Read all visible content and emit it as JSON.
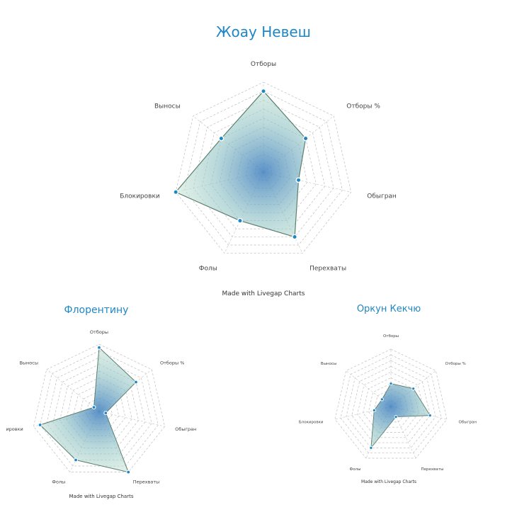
{
  "axes": [
    "Отборы",
    "Отборы %",
    "Обыгран",
    "Перехваты",
    "Фолы",
    "Блокировки",
    "Выносы"
  ],
  "colors": {
    "title": "#1f86c6",
    "point": "#1c86c8",
    "outline": "#5a8070",
    "fill_outer": "#cfe8d6",
    "fill_inner": "#3f7fbf"
  },
  "chart_data": [
    {
      "type": "radar",
      "title": "Жоау Невеш",
      "categories": [
        "Отборы",
        "Отборы %",
        "Обыгран",
        "Перехваты",
        "Фолы",
        "Блокировки",
        "Выносы"
      ],
      "series": [
        {
          "values": [
            9,
            6,
            4,
            8,
            6,
            10,
            6
          ]
        }
      ],
      "rlim": [
        0,
        10
      ],
      "grid": true,
      "footer": "Made with Livegap Charts"
    },
    {
      "type": "radar",
      "title": "Флорентину",
      "categories": [
        "Отборы",
        "Отборы %",
        "Обыгран",
        "Перехваты",
        "Фолы",
        "Блокировки",
        "Выносы"
      ],
      "axis_labels_shown": [
        "Отборы",
        "Отборы %",
        "Обыгран",
        "Перехваты",
        "Фолы",
        "ировки",
        "Выносы"
      ],
      "series": [
        {
          "values": [
            9.5,
            7,
            1,
            10,
            8,
            9,
            1
          ]
        }
      ],
      "rlim": [
        0,
        10
      ],
      "grid": true,
      "footer": "Made with Livegap Charts"
    },
    {
      "type": "radar",
      "title": "Оркун Кекчю",
      "categories": [
        "Отборы",
        "Отборы %",
        "Обыгран",
        "Перехваты",
        "Фолы",
        "Блокировки",
        "Выносы"
      ],
      "series": [
        {
          "values": [
            4,
            5,
            7,
            2,
            8,
            3,
            2
          ]
        }
      ],
      "rlim": [
        0,
        10
      ],
      "grid": true,
      "footer": "Made with Livegap Charts"
    }
  ]
}
